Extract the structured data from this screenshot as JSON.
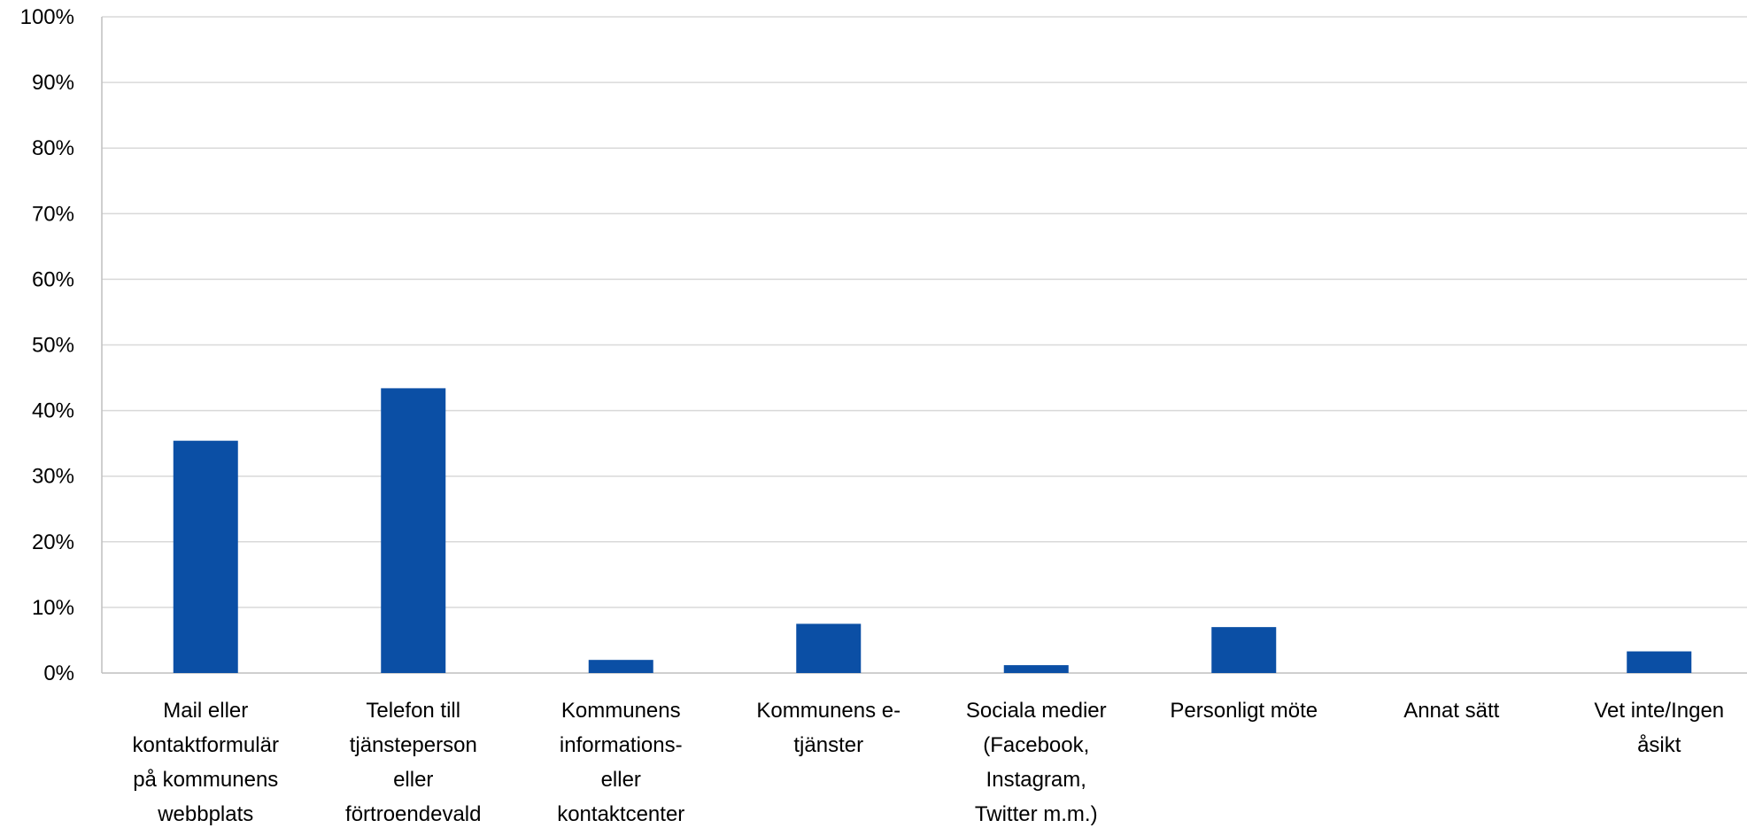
{
  "chart_data": {
    "type": "bar",
    "title": "",
    "xlabel": "",
    "ylabel": "",
    "ylim": [
      0,
      100
    ],
    "grid": true,
    "legend": "none",
    "bar_color": "#0b4fa5",
    "grid_color": "#d9d9d9",
    "axis_color": "#bfbfbf",
    "y_ticks": [
      "0%",
      "10%",
      "20%",
      "30%",
      "40%",
      "50%",
      "60%",
      "70%",
      "80%",
      "90%",
      "100%"
    ],
    "categories": [
      [
        "Mail eller",
        "kontaktformulär",
        "på kommunens",
        "webbplats"
      ],
      [
        "Telefon till",
        "tjänsteperson",
        "eller",
        "förtroendevald"
      ],
      [
        "Kommunens",
        "informations-",
        "eller",
        "kontaktcenter"
      ],
      [
        "Kommunens e-",
        "tjänster"
      ],
      [
        "Sociala medier",
        "(Facebook,",
        "Instagram,",
        "Twitter m.m.)"
      ],
      [
        "Personligt möte"
      ],
      [
        "Annat sätt"
      ],
      [
        "Vet inte/Ingen",
        "åsikt"
      ]
    ],
    "values": [
      35.4,
      43.4,
      2.0,
      7.5,
      1.2,
      7.0,
      0,
      3.3
    ]
  }
}
